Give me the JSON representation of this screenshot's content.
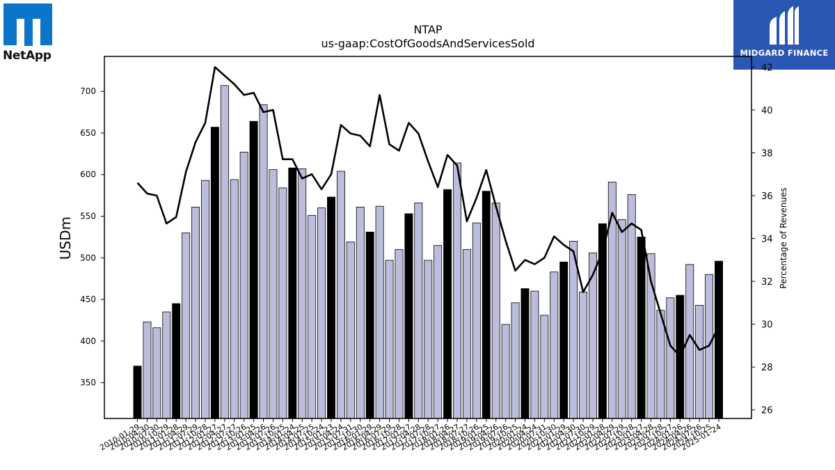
{
  "brand": {
    "logo_text": "NetApp",
    "watermark_text": "MIDGARD FINANCE"
  },
  "colors": {
    "highlight_bar": "#000000",
    "normal_bar": "#bcbcdc",
    "bar_edge": "#000000",
    "line": "#000000",
    "watermark_bg": "#2a57b3",
    "logo_blue": "#0b75c9"
  },
  "chart_data": {
    "type": "bar",
    "title": "NTAP",
    "subtitle": "us-gaap:CostOfGoodsAndServicesSold",
    "ylabel": "USDm",
    "y2label": "Percentage of Revenues",
    "ylim": [
      307,
      742
    ],
    "y2lim": [
      25.6,
      42.5
    ],
    "yticks": [
      350,
      400,
      450,
      500,
      550,
      600,
      650,
      700
    ],
    "y2ticks": [
      26,
      28,
      30,
      32,
      34,
      36,
      38,
      40,
      42
    ],
    "grid": false,
    "categories": [
      "2010-01-29",
      "2010-04-30",
      "2010-07-30",
      "2010-10-29",
      "2011-01-28",
      "2011-04-29",
      "2011-07-29",
      "2011-10-28",
      "2012-01-27",
      "2012-04-27",
      "2012-07-27",
      "2012-10-26",
      "2013-01-25",
      "2013-04-26",
      "2013-07-26",
      "2013-10-25",
      "2014-01-24",
      "2014-04-25",
      "2014-07-25",
      "2014-10-24",
      "2015-01-23",
      "2015-04-24",
      "2015-07-31",
      "2015-10-30",
      "2016-01-29",
      "2016-04-29",
      "2016-07-29",
      "2016-10-28",
      "2017-01-27",
      "2017-04-28",
      "2017-07-28",
      "2017-10-27",
      "2018-01-26",
      "2018-04-27",
      "2018-07-27",
      "2018-10-26",
      "2019-01-25",
      "2019-04-26",
      "2019-07-26",
      "2019-10-25",
      "2020-01-24",
      "2020-04-24",
      "2020-07-31",
      "2020-10-30",
      "2021-01-29",
      "2021-04-30",
      "2021-07-30",
      "2021-10-29",
      "2022-01-28",
      "2022-04-29",
      "2022-07-29",
      "2022-10-28",
      "2023-01-27",
      "2023-04-28",
      "2023-07-28",
      "2023-10-27",
      "2024-01-26",
      "2024-04-26",
      "2024-07-26",
      "2024-10-25",
      "2025-01-24"
    ],
    "highlight_every": 4,
    "highlight_offset": 0,
    "series": [
      {
        "values": [
          370,
          423,
          416,
          435,
          445,
          530,
          561,
          593,
          657,
          707,
          594,
          627,
          664,
          684,
          606,
          584,
          608,
          607,
          551,
          560,
          573,
          604,
          519,
          561,
          531,
          562,
          497,
          510,
          553,
          566,
          497,
          515,
          582,
          614,
          510,
          542,
          580,
          566,
          420,
          446,
          463,
          460,
          431,
          483,
          495,
          520,
          459,
          506,
          541,
          591,
          546,
          576,
          525,
          505,
          437,
          452,
          455,
          492,
          443,
          480,
          496
        ]
      },
      {
        "values": [
          36.6,
          36.1,
          36.0,
          34.7,
          35.0,
          37.1,
          38.5,
          39.4,
          42.0,
          41.6,
          41.2,
          40.7,
          40.8,
          39.9,
          40.0,
          37.7,
          37.7,
          36.8,
          37.0,
          36.3,
          37.0,
          39.3,
          38.9,
          38.8,
          38.3,
          40.7,
          38.4,
          38.1,
          39.4,
          38.9,
          37.6,
          36.4,
          37.9,
          37.4,
          34.8,
          35.9,
          37.2,
          35.5,
          33.9,
          32.5,
          33.0,
          32.8,
          33.1,
          34.1,
          33.7,
          33.4,
          31.5,
          32.3,
          33.4,
          35.2,
          34.3,
          34.7,
          34.4,
          32.0,
          30.5,
          29.0,
          28.5,
          29.5,
          28.8,
          29.0,
          29.9
        ]
      }
    ]
  }
}
